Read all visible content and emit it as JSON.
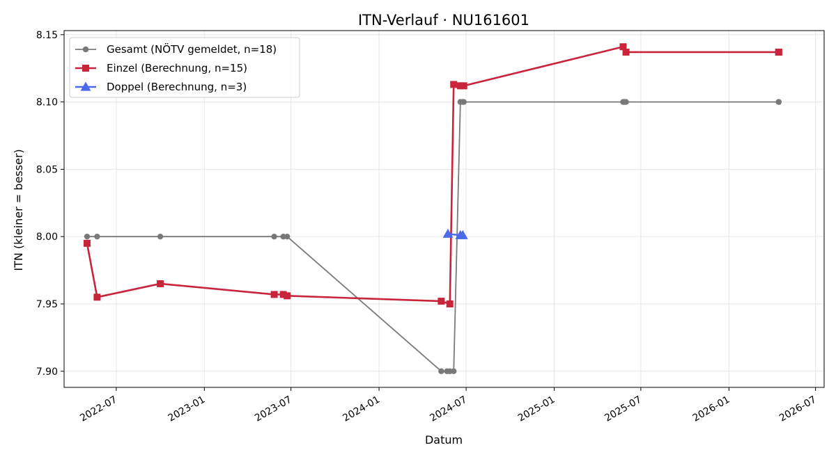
{
  "chart_data": {
    "type": "line",
    "title": "ITN-Verlauf · NU161601",
    "xlabel": "Datum",
    "ylabel": "ITN  (kleiner = besser)",
    "xlim": [
      "2022-03-14",
      "2026-07-19"
    ],
    "ylim": [
      7.888,
      8.153
    ],
    "yticks": [
      7.9,
      7.95,
      8.0,
      8.05,
      8.1,
      8.15
    ],
    "ytick_labels": [
      "7.90",
      "7.95",
      "8.00",
      "8.05",
      "8.10",
      "8.15"
    ],
    "xticks": [
      "2022-07-01",
      "2023-01-01",
      "2023-07-01",
      "2024-01-01",
      "2024-07-01",
      "2025-01-01",
      "2025-07-01",
      "2026-01-01",
      "2026-07-01"
    ],
    "xtick_labels": [
      "2022-07",
      "2023-01",
      "2023-07",
      "2024-01",
      "2024-07",
      "2025-01",
      "2025-07",
      "2026-01",
      "2026-07"
    ],
    "grid": true,
    "legend_position": "upper-left",
    "series": [
      {
        "name": "Gesamt (NÖTV gemeldet, n=18)",
        "color": "#595959",
        "marker": "circle",
        "x": [
          "2022-05-01",
          "2022-05-22",
          "2022-10-01",
          "2023-05-27",
          "2023-06-15",
          "2023-06-23",
          "2024-05-10",
          "2024-05-22",
          "2024-05-28",
          "2024-06-05",
          "2024-06-19",
          "2024-06-24",
          "2024-06-26",
          "2025-05-25",
          "2025-05-28",
          "2025-05-31",
          "2026-04-15",
          "2026-04-15"
        ],
        "y": [
          8.0,
          8.0,
          8.0,
          8.0,
          8.0,
          8.0,
          7.9,
          7.9,
          7.9,
          7.9,
          8.1,
          8.1,
          8.1,
          8.1,
          8.1,
          8.1,
          8.1,
          8.1
        ]
      },
      {
        "name": "Einzel (Berechnung, n=15)",
        "color": "#c8243c",
        "marker": "square",
        "x": [
          "2022-05-01",
          "2022-05-22",
          "2022-10-01",
          "2023-05-27",
          "2023-06-15",
          "2023-06-23",
          "2024-05-10",
          "2024-05-28",
          "2024-06-05",
          "2024-06-19",
          "2024-06-26",
          "2025-05-25",
          "2025-05-31",
          "2026-04-15",
          "2026-04-15"
        ],
        "y": [
          7.995,
          7.955,
          7.965,
          7.957,
          7.957,
          7.956,
          7.952,
          7.95,
          8.113,
          8.112,
          8.112,
          8.141,
          8.137,
          8.137,
          8.137
        ]
      },
      {
        "name": "Doppel (Berechnung, n=3)",
        "color": "#4b6bea",
        "marker": "triangle",
        "x": [
          "2024-05-24",
          "2024-06-19",
          "2024-06-24"
        ],
        "y": [
          8.002,
          8.001,
          8.001
        ]
      }
    ]
  }
}
